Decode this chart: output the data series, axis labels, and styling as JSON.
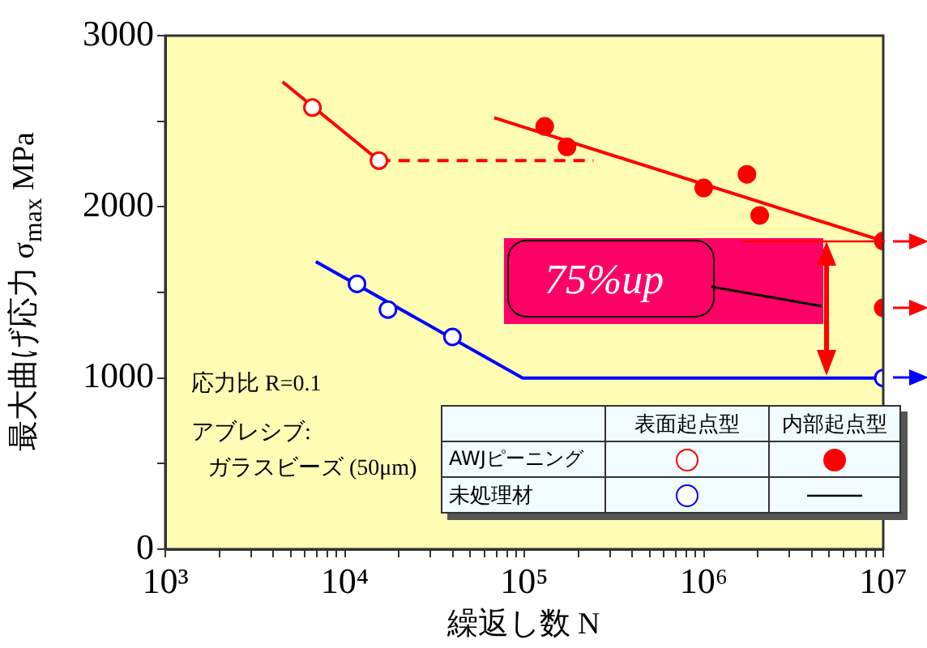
{
  "chart_data": {
    "type": "scatter",
    "xlabel": "繰返し数 N",
    "ylabel": "最大曲げ応力 σ$_{max}$ MPa",
    "annotations": [
      "応力比 R=0.1",
      "アブレシブ:",
      "ガラスビーズ (50μm)",
      "75%up",
      "表面起点型",
      "内部起点型",
      "AWJピーニング",
      "未処理材"
    ],
    "log": "x",
    "grid": false,
    "xlim": [
      1000,
      10000000
    ],
    "ylim": [
      0,
      3000
    ],
    "xticks": [
      {
        "value": 1000,
        "label": "10³"
      },
      {
        "value": 2000,
        "label": null
      },
      {
        "value": 3000,
        "label": null
      },
      {
        "value": 4000,
        "label": null
      },
      {
        "value": 5000,
        "label": null
      },
      {
        "value": 6000,
        "label": null
      },
      {
        "value": 7000,
        "label": null
      },
      {
        "value": 8000,
        "label": null
      },
      {
        "value": 9000,
        "label": null
      },
      {
        "value": 10000,
        "label": "10⁴"
      },
      {
        "value": 20000,
        "label": null
      },
      {
        "value": 30000,
        "label": null
      },
      {
        "value": 40000,
        "label": null
      },
      {
        "value": 50000,
        "label": null
      },
      {
        "value": 60000,
        "label": null
      },
      {
        "value": 70000,
        "label": null
      },
      {
        "value": 80000,
        "label": null
      },
      {
        "value": 90000,
        "label": null
      },
      {
        "value": 100000,
        "label": "10⁵"
      },
      {
        "value": 200000,
        "label": null
      },
      {
        "value": 300000,
        "label": null
      },
      {
        "value": 400000,
        "label": null
      },
      {
        "value": 500000,
        "label": null
      },
      {
        "value": 600000,
        "label": null
      },
      {
        "value": 700000,
        "label": null
      },
      {
        "value": 800000,
        "label": null
      },
      {
        "value": 900000,
        "label": null
      },
      {
        "value": 1000000,
        "label": "10⁶"
      },
      {
        "value": 2000000,
        "label": null
      },
      {
        "value": 3000000,
        "label": null
      },
      {
        "value": 4000000,
        "label": null
      },
      {
        "value": 5000000,
        "label": null
      },
      {
        "value": 6000000,
        "label": null
      },
      {
        "value": 7000000,
        "label": null
      },
      {
        "value": 8000000,
        "label": null
      },
      {
        "value": 9000000,
        "label": null
      },
      {
        "value": 10000000,
        "label": "10⁷"
      }
    ],
    "yticks": [
      0,
      {
        "value": 500,
        "label": null
      },
      1000,
      {
        "value": 1500,
        "label": null
      },
      2000,
      {
        "value": 2500,
        "label": null
      },
      3000
    ],
    "series": [
      {
        "type": "line",
        "color": "#ff0000",
        "x": [
          4500,
          15500
        ],
        "values": [
          2730,
          2270
        ]
      },
      {
        "type": "line",
        "color": "#ff0000",
        "line_style": "dashed",
        "x": [
          15500,
          243000
        ],
        "values": [
          2270,
          2270
        ]
      },
      {
        "type": "line",
        "color": "#ff0000",
        "x": [
          68000,
          10000000
        ],
        "values": [
          2520,
          1800
        ]
      },
      {
        "type": "line",
        "color": "#0000ff",
        "x": [
          6900,
          98000,
          10000000
        ],
        "values": [
          1680,
          1000,
          1000
        ]
      },
      {
        "color": "#ff0000",
        "marker": "circle",
        "x": [
          6600,
          15500
        ],
        "values": [
          2580,
          2270
        ]
      },
      {
        "color": "#ff0000",
        "marker": "circle",
        "x": [
          130000,
          173000,
          1000000,
          1740000,
          2050000,
          10000000,
          10000000
        ],
        "values": [
          2470,
          2350,
          2110,
          2190,
          1950,
          1800,
          1410
        ]
      },
      {
        "color": "#0000ff",
        "marker": "circle",
        "x": [
          11700,
          17400,
          39800,
          10000000
        ],
        "values": [
          1550,
          1400,
          1240,
          1000
        ]
      }
    ]
  }
}
